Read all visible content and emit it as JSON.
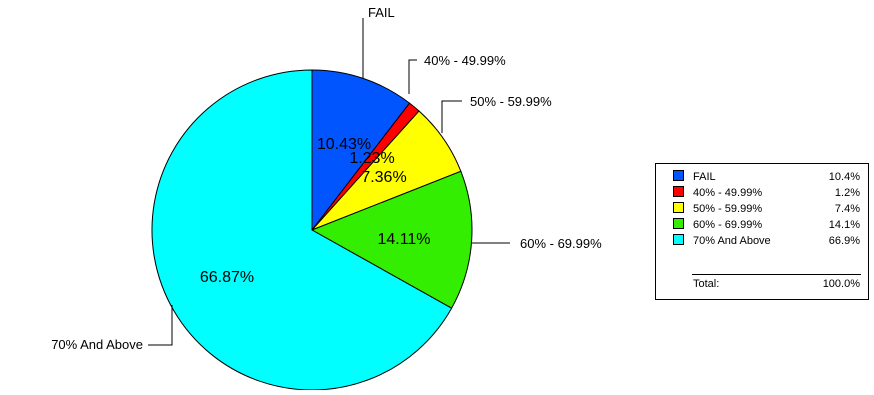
{
  "chart_data": {
    "type": "pie",
    "slices": [
      {
        "name": "FAIL",
        "legend_name": "FAIL",
        "value": 10.43,
        "label": "10.43%",
        "legend_value": "10.4%",
        "color": "#0055ff"
      },
      {
        "name": "40%  -  49.99%",
        "legend_name": "40% -  49.99%",
        "value": 1.23,
        "label": "1.23%",
        "legend_value": "1.2%",
        "color": "#ff0000"
      },
      {
        "name": "50%  -  59.99%",
        "legend_name": "50%  -  59.99%",
        "value": 7.36,
        "label": "7.36%",
        "legend_value": "7.4%",
        "color": "#ffff00"
      },
      {
        "name": "60%  -  69.99%",
        "legend_name": "60%  -  69.99%",
        "value": 14.11,
        "label": "14.11%",
        "legend_value": "14.1%",
        "color": "#33ee00"
      },
      {
        "name": "70% And Above",
        "legend_name": "70% And Above",
        "value": 66.87,
        "label": "66.87%",
        "legend_value": "66.9%",
        "color": "#00ffff"
      }
    ],
    "legend": {
      "placement": "right",
      "total_label": "Total:",
      "total_value": "100.0%"
    }
  }
}
